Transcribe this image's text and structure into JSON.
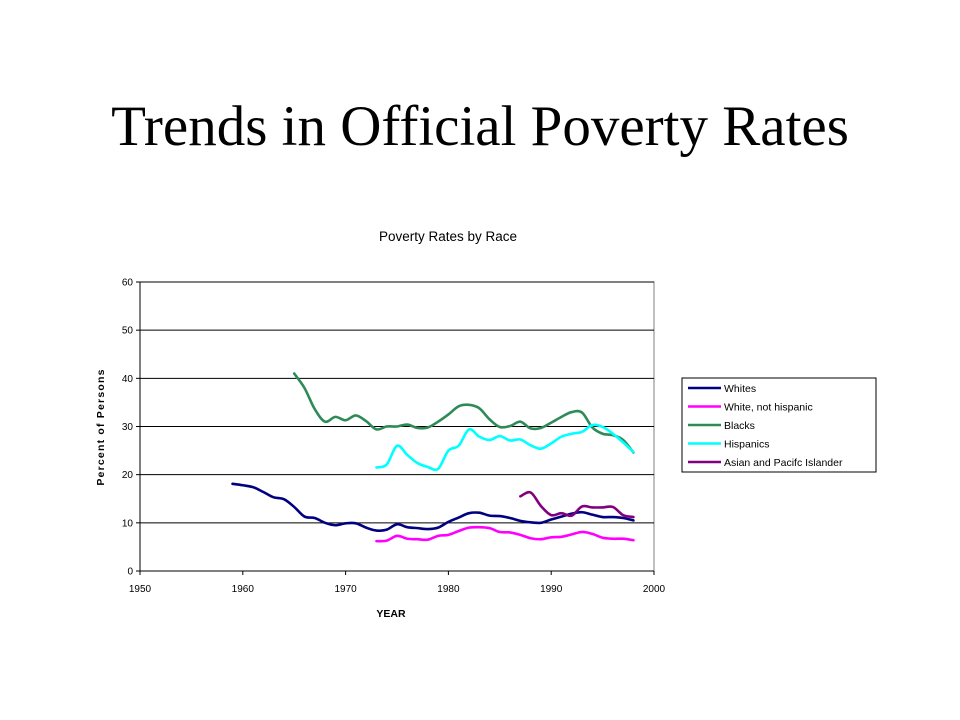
{
  "slide": {
    "title": "Trends in Official Poverty Rates"
  },
  "chart_data": {
    "type": "line",
    "title": "Poverty Rates by Race",
    "xlabel": "YEAR",
    "ylabel": "Percent of Persons",
    "xlim": [
      1950,
      2000
    ],
    "ylim": [
      0,
      60
    ],
    "xticks": [
      1950,
      1960,
      1970,
      1980,
      1990,
      2000
    ],
    "yticks": [
      0,
      10,
      20,
      30,
      40,
      50,
      60
    ],
    "grid": "horizontal",
    "legend": "right",
    "series": [
      {
        "name": "Whites",
        "color": "#000080",
        "x": [
          1959,
          1960,
          1961,
          1962,
          1963,
          1964,
          1965,
          1966,
          1967,
          1968,
          1969,
          1970,
          1971,
          1972,
          1973,
          1974,
          1975,
          1976,
          1977,
          1978,
          1979,
          1980,
          1981,
          1982,
          1983,
          1984,
          1985,
          1986,
          1987,
          1988,
          1989,
          1990,
          1991,
          1992,
          1993,
          1994,
          1995,
          1996,
          1997,
          1998
        ],
        "y": [
          18.1,
          17.8,
          17.4,
          16.4,
          15.3,
          14.9,
          13.3,
          11.3,
          11.0,
          10.0,
          9.5,
          9.9,
          9.9,
          9.0,
          8.4,
          8.6,
          9.7,
          9.1,
          8.9,
          8.7,
          9.0,
          10.2,
          11.1,
          12.0,
          12.1,
          11.5,
          11.4,
          11.0,
          10.4,
          10.1,
          10.0,
          10.7,
          11.3,
          11.9,
          12.2,
          11.7,
          11.2,
          11.2,
          11.0,
          10.5
        ]
      },
      {
        "name": "White, not hispanic",
        "color": "#FF00FF",
        "x": [
          1973,
          1974,
          1975,
          1976,
          1977,
          1978,
          1979,
          1980,
          1981,
          1982,
          1983,
          1984,
          1985,
          1986,
          1987,
          1988,
          1989,
          1990,
          1991,
          1992,
          1993,
          1994,
          1995,
          1996,
          1997,
          1998
        ],
        "y": [
          6.2,
          6.3,
          7.3,
          6.7,
          6.6,
          6.5,
          7.3,
          7.5,
          8.3,
          9.0,
          9.1,
          8.9,
          8.1,
          8.0,
          7.5,
          6.8,
          6.6,
          7.0,
          7.1,
          7.6,
          8.1,
          7.7,
          6.9,
          6.7,
          6.7,
          6.4
        ]
      },
      {
        "name": "Blacks",
        "color": "#2E8B57",
        "x": [
          1965,
          1966,
          1967,
          1968,
          1969,
          1970,
          1971,
          1972,
          1973,
          1974,
          1975,
          1976,
          1977,
          1978,
          1979,
          1980,
          1981,
          1982,
          1983,
          1984,
          1985,
          1986,
          1987,
          1988,
          1989,
          1990,
          1991,
          1992,
          1993,
          1994,
          1995,
          1996,
          1997,
          1998
        ],
        "y": [
          41.0,
          38.0,
          33.6,
          31.0,
          32.0,
          31.3,
          32.3,
          31.1,
          29.4,
          30.0,
          30.0,
          30.4,
          29.7,
          29.8,
          31.0,
          32.5,
          34.2,
          34.5,
          33.8,
          31.5,
          29.9,
          30.1,
          31.0,
          29.6,
          29.7,
          30.8,
          32.0,
          33.0,
          32.9,
          29.8,
          28.5,
          28.2,
          27.2,
          24.6
        ]
      },
      {
        "name": "Hispanics",
        "color": "#00FFFF",
        "x": [
          1973,
          1974,
          1975,
          1976,
          1977,
          1978,
          1979,
          1980,
          1981,
          1982,
          1983,
          1984,
          1985,
          1986,
          1987,
          1988,
          1989,
          1990,
          1991,
          1992,
          1993,
          1994,
          1995,
          1996,
          1997,
          1998
        ],
        "y": [
          21.5,
          22.1,
          26.0,
          24.1,
          22.4,
          21.6,
          21.2,
          25.0,
          26.0,
          29.4,
          27.9,
          27.2,
          28.0,
          27.1,
          27.3,
          26.1,
          25.4,
          26.5,
          27.9,
          28.5,
          28.9,
          30.3,
          29.9,
          28.5,
          26.7,
          24.7
        ]
      },
      {
        "name": "Asian and Pacifc Islander",
        "color": "#800080",
        "x": [
          1987,
          1988,
          1989,
          1990,
          1991,
          1992,
          1993,
          1994,
          1995,
          1996,
          1997,
          1998
        ],
        "y": [
          15.5,
          16.3,
          13.5,
          11.6,
          12.0,
          11.5,
          13.4,
          13.2,
          13.2,
          13.3,
          11.6,
          11.2
        ]
      }
    ]
  }
}
